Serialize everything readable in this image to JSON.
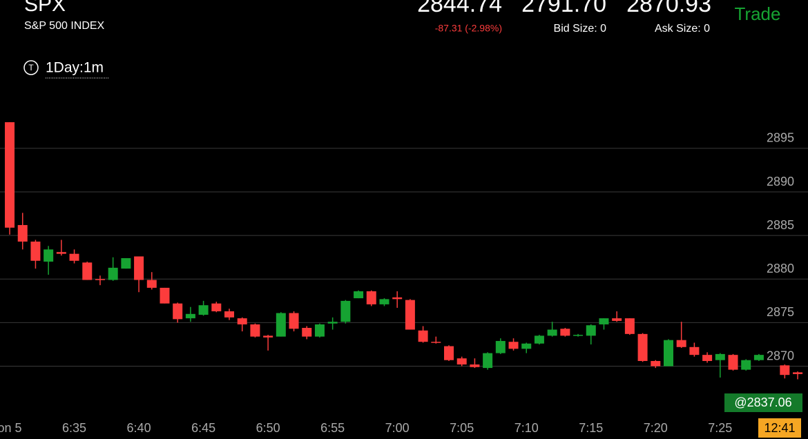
{
  "header": {
    "symbol": "SPX",
    "name": "S&P 500 INDEX",
    "last": "2844.74",
    "bid": "2791.70",
    "ask": "2870.93",
    "change": "-87.31 (-2.98%)",
    "bid_size": "Bid Size: 0",
    "ask_size": "Ask Size: 0",
    "trade_button": "Trade",
    "interval": "1Day:1m"
  },
  "chart_data": {
    "type": "candlestick",
    "up_color": "#16a332",
    "down_color": "#fc3c3c",
    "open": [
      2898.0,
      2886.2,
      2884.3,
      2882.0,
      2883.1,
      2882.9,
      2881.9,
      2880.0,
      2879.9,
      2881.2,
      2882.6,
      2879.9,
      2879.0,
      2877.2,
      2875.5,
      2875.9,
      2877.2,
      2876.3,
      2875.5,
      2874.8,
      2873.5,
      2873.4,
      2876.1,
      2874.4,
      2873.4,
      2874.9,
      2875.1,
      2877.8,
      2878.6,
      2877.1,
      2877.9,
      2877.6,
      2874.1,
      2872.8,
      2872.3,
      2870.9,
      2870.2,
      2869.8,
      2871.5,
      2872.8,
      2872.0,
      2872.6,
      2873.5,
      2874.3,
      2873.5,
      2873.5,
      2874.8,
      2875.5,
      2875.5,
      2873.7,
      2870.6,
      2870.0,
      2873.0,
      2872.2,
      2871.3,
      2870.7,
      2871.3,
      2869.6,
      2870.7,
      null,
      2870.1,
      2869.3
    ],
    "high": [
      2898.0,
      2887.6,
      2884.5,
      2883.8,
      2884.5,
      2883.4,
      2882.0,
      2880.4,
      2882.5,
      2882.4,
      2882.6,
      2880.8,
      2879.0,
      2877.3,
      2876.8,
      2877.5,
      2877.4,
      2876.6,
      2875.6,
      2874.9,
      2873.6,
      2876.2,
      2876.3,
      2874.6,
      2874.9,
      2875.6,
      2877.6,
      2878.7,
      2878.7,
      2877.8,
      2878.6,
      2877.7,
      2874.6,
      2873.4,
      2872.4,
      2871.1,
      2870.9,
      2871.6,
      2873.2,
      2873.2,
      2872.7,
      2873.6,
      2875.1,
      2874.4,
      2873.7,
      2874.8,
      2875.5,
      2876.3,
      2875.5,
      2873.8,
      2870.7,
      2873.1,
      2875.1,
      2872.7,
      2871.6,
      2871.5,
      2871.4,
      2870.8,
      2871.4,
      null,
      2870.2,
      2869.4
    ],
    "low": [
      2885.1,
      2883.4,
      2881.2,
      2880.5,
      2882.7,
      2881.8,
      2879.9,
      2879.3,
      2879.8,
      2881.2,
      2878.5,
      2878.8,
      2877.2,
      2875.0,
      2875.1,
      2875.8,
      2876.2,
      2875.3,
      2874.0,
      2873.3,
      2871.8,
      2873.4,
      2874.0,
      2873.1,
      2873.3,
      2874.2,
      2874.9,
      2877.8,
      2876.9,
      2876.9,
      2876.7,
      2874.2,
      2872.7,
      2872.6,
      2870.6,
      2870.0,
      2869.8,
      2869.6,
      2871.4,
      2871.8,
      2871.5,
      2872.5,
      2873.4,
      2873.4,
      2873.4,
      2872.5,
      2874.2,
      2875.1,
      2873.6,
      2870.5,
      2869.8,
      2870.0,
      2872.1,
      2871.1,
      2870.4,
      2868.7,
      2869.5,
      2869.5,
      2870.6,
      null,
      2868.6,
      2868.5
    ],
    "close": [
      2885.9,
      2884.3,
      2882.1,
      2883.4,
      2882.9,
      2882.1,
      2879.9,
      2879.9,
      2881.3,
      2882.4,
      2879.9,
      2879.0,
      2877.2,
      2875.4,
      2876.0,
      2877.0,
      2876.3,
      2875.6,
      2874.8,
      2873.4,
      2873.3,
      2876.1,
      2874.3,
      2873.4,
      2874.8,
      2875.1,
      2877.5,
      2878.6,
      2877.1,
      2877.7,
      2877.7,
      2874.2,
      2872.8,
      2872.7,
      2870.7,
      2870.2,
      2869.9,
      2871.5,
      2872.9,
      2872.0,
      2872.6,
      2873.5,
      2874.2,
      2873.5,
      2873.6,
      2874.7,
      2875.5,
      2875.2,
      2873.7,
      2870.6,
      2870.0,
      2873.0,
      2872.2,
      2871.3,
      2870.6,
      2871.4,
      2869.6,
      2870.7,
      2871.3,
      null,
      2869.0,
      2869.1
    ],
    "xlim": [
      -0.75,
      61.8
    ],
    "xticks": [
      {
        "value": 0,
        "label": "on 5"
      },
      {
        "value": 5,
        "label": "6:35"
      },
      {
        "value": 10,
        "label": "6:40"
      },
      {
        "value": 15,
        "label": "6:45"
      },
      {
        "value": 20,
        "label": "6:50"
      },
      {
        "value": 25,
        "label": "6:55"
      },
      {
        "value": 30,
        "label": "7:00"
      },
      {
        "value": 35,
        "label": "7:05"
      },
      {
        "value": 40,
        "label": "7:10"
      },
      {
        "value": 45,
        "label": "7:15"
      },
      {
        "value": 50,
        "label": "7:20"
      },
      {
        "value": 55,
        "label": "7:25"
      }
    ],
    "ylim": [
      2864.5,
      2898.4
    ],
    "yticks": [
      2870,
      2875,
      2880,
      2885,
      2890,
      2895
    ],
    "grid": true,
    "price_tag": "@2837.06",
    "time_tag": "12:41"
  }
}
